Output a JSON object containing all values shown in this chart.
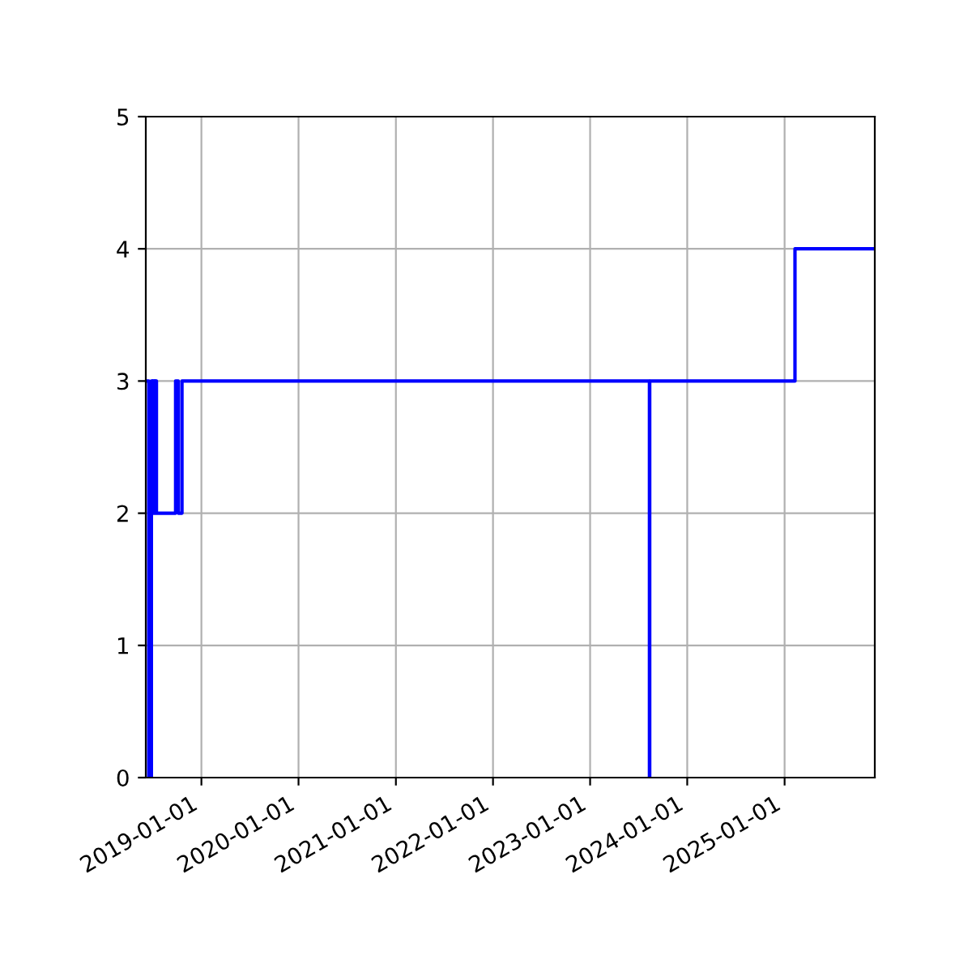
{
  "chart_data": {
    "type": "step",
    "x": [
      "2018-06-12",
      "2018-06-17",
      "2018-06-27",
      "2018-06-30",
      "2018-07-03",
      "2018-07-06",
      "2018-07-09",
      "2018-07-12",
      "2018-07-15",
      "2018-07-16",
      "2018-09-26",
      "2018-10-06",
      "2018-10-20",
      "2023-08-12",
      "2023-08-13",
      "2025-02-09",
      "2025-12-06"
    ],
    "series": [
      {
        "color": "#0000ff",
        "values": [
          3,
          0,
          3,
          2,
          3,
          2,
          3,
          2,
          3,
          2,
          3,
          2,
          3,
          0,
          3,
          4,
          4
        ]
      }
    ],
    "xlim": [
      "2018-06-06",
      "2025-12-06"
    ],
    "xticks": [
      "2019-01-01",
      "2020-01-01",
      "2021-01-01",
      "2022-01-01",
      "2023-01-01",
      "2024-01-01",
      "2025-01-01"
    ],
    "ylim": [
      0,
      5
    ],
    "yticks": [
      0,
      1,
      2,
      3,
      4,
      5
    ],
    "grid": true,
    "line_style": "solid",
    "marker": "none"
  }
}
